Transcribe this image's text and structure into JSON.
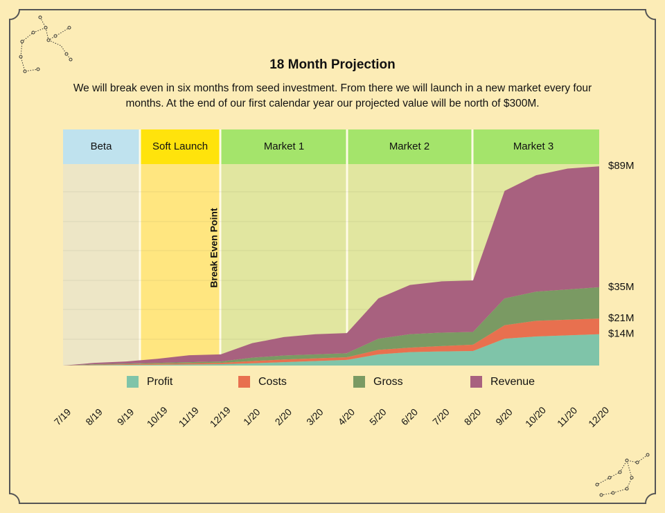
{
  "chart_data": {
    "type": "stacked_area",
    "title": "18 Month Projection",
    "subtitle": "We will break even in six months from seed investment.  From there we will launch in a new market every four months. At the end of our first calendar year our projected value will be north of $300M.",
    "phases": [
      "Beta",
      "Soft Launch",
      "Market 1",
      "Market 2",
      "Market 3"
    ],
    "annotation": "Break Even Point",
    "categories": [
      "7/19",
      "8/19",
      "9/19",
      "10/19",
      "11/19",
      "12/19",
      "1/20",
      "2/20",
      "3/20",
      "4/20",
      "5/20",
      "6/20",
      "7/20",
      "8/20",
      "9/20",
      "10/20",
      "11/20",
      "12/20"
    ],
    "series": [
      {
        "name": "Profit",
        "color": "#7fc4a9",
        "values": [
          0,
          0.2,
          0.3,
          0.4,
          0.5,
          0.6,
          1,
          1.5,
          2,
          2.5,
          5,
          6,
          6.3,
          6.5,
          12,
          13,
          13.5,
          14
        ]
      },
      {
        "name": "Costs",
        "color": "#e8704f",
        "values": [
          0,
          0.2,
          0.3,
          0.4,
          0.5,
          0.6,
          1,
          1.2,
          1.2,
          1.2,
          2,
          2,
          2.4,
          2.8,
          6,
          7,
          7,
          7
        ]
      },
      {
        "name": "Gross",
        "color": "#7a9a63",
        "values": [
          0,
          0.2,
          0.3,
          0.4,
          0.5,
          0.6,
          1.5,
          1.8,
          1.8,
          1.8,
          5,
          6,
          6,
          5.7,
          12,
          13,
          13.5,
          14
        ]
      },
      {
        "name": "Revenue",
        "color": "#a8617f",
        "values": [
          0,
          0.6,
          0.9,
          1.8,
          3.1,
          3.2,
          6.5,
          8.2,
          9,
          9,
          18,
          22,
          22.9,
          23,
          48,
          52,
          54,
          54
        ]
      }
    ],
    "ylim": [
      0,
      90
    ],
    "yticks": [
      {
        "value": 89,
        "label": "$89M"
      },
      {
        "value": 35,
        "label": "$35M"
      },
      {
        "value": 21,
        "label": "$21M"
      },
      {
        "value": 14,
        "label": "$14M"
      }
    ]
  }
}
